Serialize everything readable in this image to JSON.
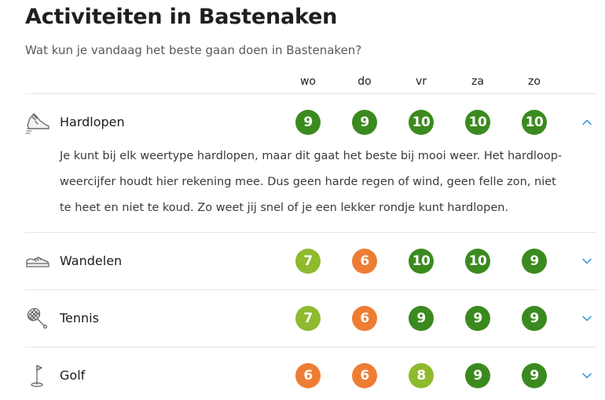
{
  "page": {
    "title": "Activiteiten in Bastenaken",
    "subtitle": "Wat kun je vandaag het beste gaan doen in Bastenaken?"
  },
  "days": [
    "wo",
    "do",
    "vr",
    "za",
    "zo"
  ],
  "colors": {
    "score_dark_green": "#3b8a1f",
    "score_light_green": "#8fba2e",
    "score_orange": "#ee7d34",
    "chevron_blue": "#1a8fd8"
  },
  "activities": [
    {
      "name": "Hardlopen",
      "icon": "running-shoe-icon",
      "expanded": true,
      "scores": [
        "9",
        "9",
        "10",
        "10",
        "10"
      ],
      "description": "Je kunt bij elk weertype hardlopen, maar dit gaat het beste bij mooi weer. Het hardloop-weercijfer houdt hier rekening mee. Dus geen harde regen of wind, geen felle zon, niet te heet en niet te koud. Zo weet jij snel of je een lekker rondje kunt hardlopen."
    },
    {
      "name": "Wandelen",
      "icon": "walking-shoe-icon",
      "expanded": false,
      "scores": [
        "7",
        "6",
        "10",
        "10",
        "9"
      ]
    },
    {
      "name": "Tennis",
      "icon": "tennis-racket-icon",
      "expanded": false,
      "scores": [
        "7",
        "6",
        "9",
        "9",
        "9"
      ]
    },
    {
      "name": "Golf",
      "icon": "golf-flag-icon",
      "expanded": false,
      "scores": [
        "6",
        "6",
        "8",
        "9",
        "9"
      ]
    }
  ]
}
